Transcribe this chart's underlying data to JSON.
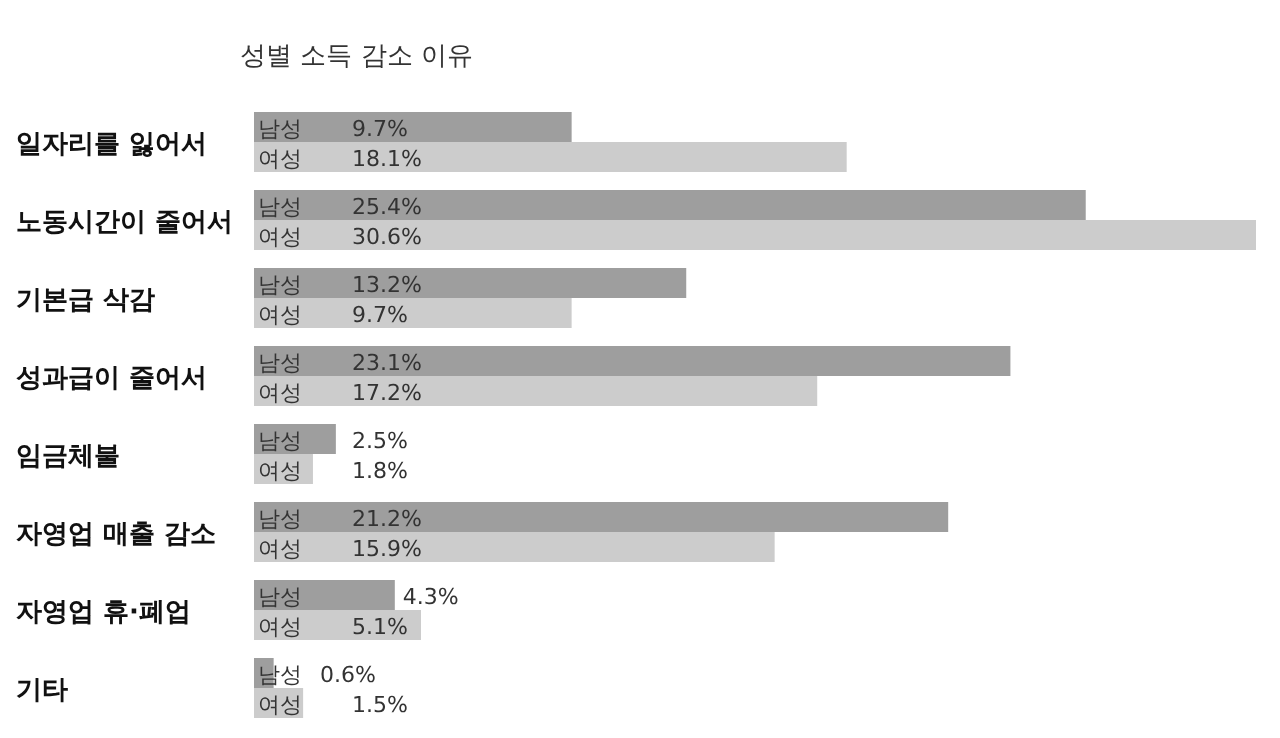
{
  "chart_data": {
    "type": "bar",
    "orientation": "horizontal",
    "title": "성별 소득 감소 이유",
    "categories": [
      "일자리를 잃어서",
      "노동시간이 줄어서",
      "기본급 삭감",
      "성과급이 줄어서",
      "임금체불",
      "자영업 매출 감소",
      "자영업 휴·폐업",
      "기타"
    ],
    "series": [
      {
        "name": "남성",
        "color": "#9e9e9e",
        "values": [
          9.7,
          25.4,
          13.2,
          23.1,
          2.5,
          21.2,
          4.3,
          0.6
        ],
        "value_labels": [
          "9.7%",
          "25.4%",
          "13.2%",
          "23.1%",
          "2.5%",
          "21.2%",
          "4.3%",
          "0.6%"
        ]
      },
      {
        "name": "여성",
        "color": "#cccccc",
        "values": [
          18.1,
          30.6,
          9.7,
          17.2,
          1.8,
          15.9,
          5.1,
          1.5
        ],
        "value_labels": [
          "18.1%",
          "30.6%",
          "9.7%",
          "17.2%",
          "1.8%",
          "15.9%",
          "5.1%",
          "1.5%"
        ]
      }
    ],
    "legend": false
  }
}
